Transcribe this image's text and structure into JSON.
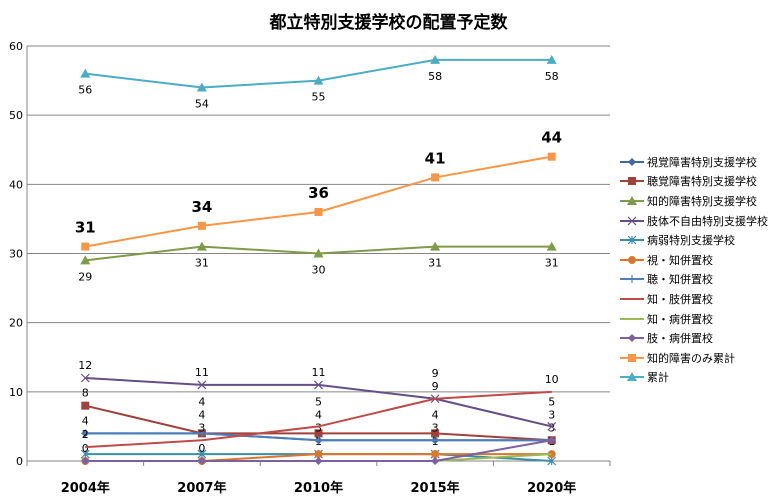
{
  "chart_data": {
    "type": "line",
    "title": "都立特別支援学校の配置予定数",
    "categories": [
      "2004年",
      "2007年",
      "2010年",
      "2015年",
      "2020年"
    ],
    "ylim": [
      0,
      60
    ],
    "yticks": [
      0,
      10,
      20,
      30,
      40,
      50,
      60
    ],
    "grid": true,
    "legend": "right",
    "series": [
      {
        "name": "視覚障害特別支援学校",
        "values": [
          4,
          4,
          3,
          3,
          3
        ],
        "color": "#3d6a9f",
        "marker": "diamond",
        "labels": "none"
      },
      {
        "name": "聴覚障害特別支援学校",
        "values": [
          8,
          4,
          4,
          4,
          3
        ],
        "color": "#a0413c",
        "marker": "square",
        "labels": "above"
      },
      {
        "name": "知的障害特別支援学校",
        "values": [
          29,
          31,
          30,
          31,
          31
        ],
        "color": "#7f9a48",
        "marker": "triangle",
        "labels": "below"
      },
      {
        "name": "肢体不自由特別支援学校",
        "values": [
          12,
          11,
          11,
          9,
          5
        ],
        "color": "#664f84",
        "marker": "x",
        "labels": "above"
      },
      {
        "name": "病弱特別支援学校",
        "values": [
          1,
          1,
          1,
          1,
          0
        ],
        "color": "#3a8ea6",
        "marker": "star",
        "labels": "none"
      },
      {
        "name": "視・知併置校",
        "values": [
          0,
          0,
          1,
          1,
          1
        ],
        "color": "#d9782d",
        "marker": "circle",
        "labels": "above"
      },
      {
        "name": "聴・知併置校",
        "values": [
          4,
          4,
          3,
          3,
          3
        ],
        "color": "#4a7ebb",
        "marker": "plus",
        "labels": "above"
      },
      {
        "name": "知・肢併置校",
        "values": [
          2,
          3,
          5,
          9,
          10
        ],
        "color": "#be4b48",
        "marker": "none",
        "labels": "above"
      },
      {
        "name": "知・病併置校",
        "values": [
          0,
          0,
          0,
          0,
          1
        ],
        "color": "#98b954",
        "marker": "none",
        "labels": "none"
      },
      {
        "name": "肢・病併置校",
        "values": [
          0,
          0,
          0,
          0,
          3
        ],
        "color": "#7d60a0",
        "marker": "diamond",
        "labels": "none"
      },
      {
        "name": "知的障害のみ累計",
        "values": [
          31,
          34,
          36,
          41,
          44
        ],
        "color": "#f79646",
        "marker": "square",
        "labels": "bold-above"
      },
      {
        "name": "累計",
        "values": [
          56,
          54,
          55,
          58,
          58
        ],
        "color": "#4bacc6",
        "marker": "triangle",
        "labels": "below"
      }
    ]
  }
}
